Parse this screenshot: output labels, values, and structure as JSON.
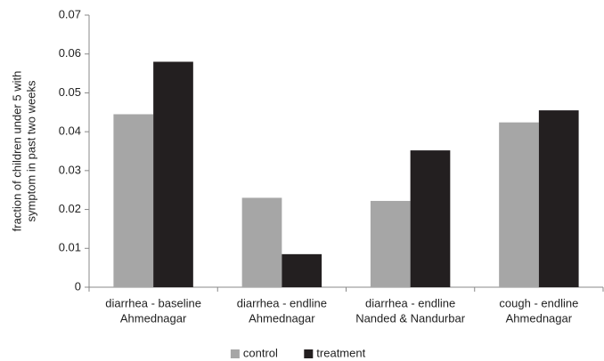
{
  "chart_data": {
    "type": "bar",
    "y_label": [
      "fraction of children under 5 with",
      "symptom in past two weeks"
    ],
    "categories": [
      [
        "diarrhea - baseline",
        "Ahmednagar"
      ],
      [
        "diarrhea - endline",
        "Ahmednagar"
      ],
      [
        "diarrhea - endline",
        "Nanded & Nandurbar"
      ],
      [
        "cough - endline",
        "Ahmednagar"
      ]
    ],
    "series": [
      {
        "name": "control",
        "color": "#a6a6a6",
        "values": [
          0.0445,
          0.023,
          0.0222,
          0.0424
        ]
      },
      {
        "name": "treatment",
        "color": "#231f20",
        "values": [
          0.058,
          0.0085,
          0.0352,
          0.0455
        ]
      }
    ],
    "ylim": [
      0,
      0.07
    ],
    "yticks": [
      0,
      0.01,
      0.02,
      0.03,
      0.04,
      0.05,
      0.06,
      0.07
    ],
    "grid": false,
    "legend": "bottom"
  }
}
